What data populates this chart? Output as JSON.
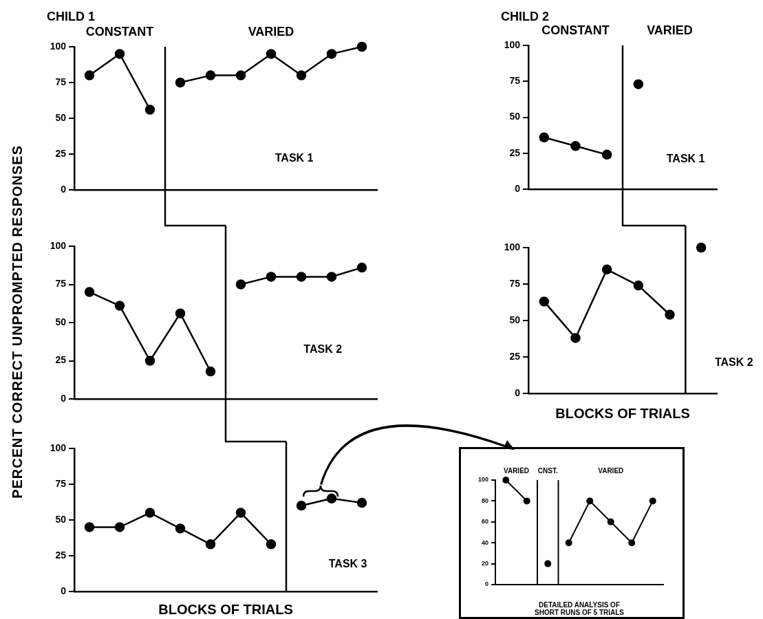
{
  "chart_data": [
    {
      "type": "line",
      "title": "CHILD 1",
      "categories": [
        null,
        null,
        null,
        null,
        null,
        null,
        null,
        null,
        null,
        null
      ],
      "ylim": [
        0,
        100
      ],
      "yticks": [
        0,
        25,
        50,
        75,
        100
      ],
      "tick_labels": "y",
      "marker": "circle",
      "line_style": "solid",
      "series": [
        {
          "color": "#000000",
          "values": [
            80,
            95,
            56,
            null,
            null,
            null,
            null,
            null,
            null,
            null
          ]
        },
        {
          "color": "#000000",
          "values": [
            null,
            null,
            null,
            75,
            80,
            80,
            95,
            80,
            95,
            100
          ]
        }
      ],
      "ref_lines": [
        {
          "axis": "x",
          "color": "#000000"
        }
      ],
      "annotations": [
        "CONSTANT",
        "VARIED",
        "TASK 1"
      ]
    },
    {
      "type": "line",
      "ylabel": "PERCENT CORRECT UNPROMPTED RESPONSES",
      "categories": [
        null,
        null,
        null,
        null,
        null,
        null,
        null,
        null,
        null,
        null
      ],
      "ylim": [
        0,
        100
      ],
      "yticks": [
        0,
        25,
        50,
        75,
        100
      ],
      "tick_labels": "y",
      "marker": "circle",
      "line_style": "solid",
      "series": [
        {
          "color": "#000000",
          "values": [
            70,
            61,
            25,
            56,
            18,
            null,
            null,
            null,
            null,
            null
          ]
        },
        {
          "color": "#000000",
          "values": [
            null,
            null,
            null,
            null,
            null,
            75,
            80,
            80,
            80,
            86
          ]
        }
      ],
      "ref_lines": [
        {
          "axis": "x",
          "color": "#000000"
        }
      ],
      "annotations": [
        null,
        null,
        "TASK 2"
      ]
    },
    {
      "type": "line",
      "xlabel": "BLOCKS OF TRIALS",
      "categories": [
        null,
        null,
        null,
        null,
        null,
        null,
        null,
        null,
        null,
        null
      ],
      "ylim": [
        0,
        100
      ],
      "yticks": [
        0,
        25,
        50,
        75,
        100
      ],
      "tick_labels": "y",
      "marker": "circle",
      "line_style": "solid",
      "series": [
        {
          "color": "#000000",
          "values": [
            45,
            45,
            55,
            44,
            33,
            55,
            33,
            null,
            null,
            null
          ]
        },
        {
          "color": "#000000",
          "values": [
            null,
            null,
            null,
            null,
            null,
            null,
            null,
            60,
            65,
            62
          ]
        }
      ],
      "ref_lines": [
        {
          "axis": "x",
          "color": "#000000"
        }
      ],
      "annotations": [
        null,
        null,
        "TASK 3"
      ]
    },
    {
      "type": "line",
      "title": "CHILD 2",
      "categories": [
        null,
        null,
        null,
        null,
        null,
        null
      ],
      "ylim": [
        0,
        100
      ],
      "yticks": [
        0,
        25,
        50,
        75,
        100
      ],
      "tick_labels": "y",
      "marker": "circle",
      "line_style": "solid",
      "series": [
        {
          "color": "#000000",
          "values": [
            36,
            30,
            24,
            null,
            null,
            null
          ]
        },
        {
          "color": "#000000",
          "values": [
            null,
            null,
            null,
            73,
            null,
            null
          ]
        }
      ],
      "ref_lines": [
        {
          "axis": "x",
          "color": "#000000"
        }
      ],
      "annotations": [
        "CONSTANT",
        "VARIED",
        "TASK 1"
      ]
    },
    {
      "type": "line",
      "xlabel": "BLOCKS OF TRIALS",
      "categories": [
        null,
        null,
        null,
        null,
        null,
        null
      ],
      "ylim": [
        0,
        100
      ],
      "yticks": [
        0,
        25,
        50,
        75,
        100
      ],
      "tick_labels": "y",
      "marker": "circle",
      "line_style": "solid",
      "series": [
        {
          "color": "#000000",
          "values": [
            63,
            38,
            85,
            74,
            54,
            null
          ]
        },
        {
          "color": "#000000",
          "values": [
            null,
            null,
            null,
            null,
            null,
            100
          ]
        }
      ],
      "ref_lines": [
        {
          "axis": "x",
          "color": "#000000"
        }
      ],
      "annotations": [
        null,
        null,
        "TASK 2"
      ]
    },
    {
      "type": "line",
      "xlabel": "DETAILED ANALYSIS OF\nSHORT RUNS OF 5 TRIALS",
      "categories": [
        null,
        null,
        null,
        null,
        null,
        null,
        null,
        null
      ],
      "ylim": [
        0,
        100
      ],
      "yticks": [
        0,
        20,
        40,
        60,
        80,
        100
      ],
      "tick_labels": "y",
      "marker": "circle",
      "line_style": "solid",
      "series": [
        {
          "color": "#000000",
          "values": [
            100,
            80,
            null,
            null,
            null,
            null,
            null,
            null
          ]
        },
        {
          "color": "#000000",
          "values": [
            null,
            null,
            20,
            null,
            null,
            null,
            null,
            null
          ]
        },
        {
          "color": "#000000",
          "values": [
            null,
            null,
            null,
            40,
            80,
            60,
            40,
            80
          ]
        }
      ],
      "ref_lines": [
        {
          "axis": "x",
          "color": "#000000"
        },
        {
          "axis": "x",
          "color": "#000000"
        }
      ],
      "annotations": [
        "VARIED",
        "CNST.",
        "VARIED"
      ]
    }
  ]
}
